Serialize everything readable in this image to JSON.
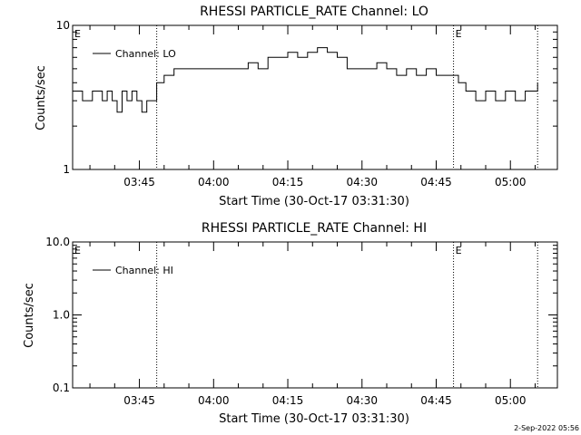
{
  "footer": {
    "timestamp": "2-Sep-2022 05:56"
  },
  "chart_data": [
    {
      "type": "line",
      "title": "RHESSI PARTICLE_RATE Channel: LO",
      "xlabel": "Start Time (30-Oct-17 03:31:30)",
      "ylabel": "Counts/sec",
      "y_scale": "log",
      "ylim": [
        1,
        10
      ],
      "y_tick_labels": [
        "1",
        "10"
      ],
      "xlim": [
        "03:31:30",
        "05:09:30"
      ],
      "x_tick_labels": [
        "03:45",
        "04:00",
        "04:15",
        "04:30",
        "04:45",
        "05:00"
      ],
      "legend": {
        "position": "top-left",
        "entries": [
          "Channel: LO"
        ]
      },
      "grid": false,
      "event_markers": [
        {
          "time": "03:31:30",
          "label": "E"
        },
        {
          "time": "03:48:30",
          "label": ""
        },
        {
          "time": "04:48:30",
          "label": "E"
        },
        {
          "time": "05:05:30",
          "label": ""
        }
      ],
      "series": [
        {
          "name": "Channel: LO",
          "x": [
            "03:31:30",
            "03:33:30",
            "03:35:30",
            "03:37:30",
            "03:38:30",
            "03:39:30",
            "03:40:30",
            "03:41:30",
            "03:42:30",
            "03:43:30",
            "03:44:30",
            "03:45:30",
            "03:46:30",
            "03:48:00",
            "03:48:30",
            "03:50:00",
            "03:52:00",
            "03:54:00",
            "03:56:00",
            "03:58:00",
            "04:00:00",
            "04:03:00",
            "04:05:00",
            "04:07:00",
            "04:09:00",
            "04:11:00",
            "04:13:00",
            "04:15:00",
            "04:17:00",
            "04:19:00",
            "04:21:00",
            "04:23:00",
            "04:25:00",
            "04:27:00",
            "04:29:00",
            "04:31:00",
            "04:33:00",
            "04:35:00",
            "04:37:00",
            "04:39:00",
            "04:41:00",
            "04:43:00",
            "04:45:00",
            "04:47:00",
            "04:48:30",
            "04:49:30",
            "04:51:00",
            "04:53:00",
            "04:55:00",
            "04:57:00",
            "04:59:00",
            "05:01:00",
            "05:03:00",
            "05:05:30"
          ],
          "y": [
            3.5,
            3,
            3.5,
            3,
            3.5,
            3,
            2.5,
            3.5,
            3,
            3.5,
            3,
            2.5,
            3,
            3,
            4,
            4.5,
            5,
            5,
            5,
            5,
            5,
            5,
            5,
            5.5,
            5,
            6,
            6,
            6.5,
            6,
            6.5,
            7,
            6.5,
            6,
            5,
            5,
            5,
            5.5,
            5,
            4.5,
            5,
            4.5,
            5,
            4.5,
            4.5,
            4.5,
            4,
            3.5,
            3,
            3.5,
            3,
            3.5,
            3,
            3.5,
            4
          ]
        }
      ]
    },
    {
      "type": "line",
      "title": "RHESSI PARTICLE_RATE Channel: HI",
      "xlabel": "Start Time (30-Oct-17 03:31:30)",
      "ylabel": "Counts/sec",
      "y_scale": "log",
      "ylim": [
        0.1,
        10
      ],
      "y_tick_labels": [
        "0.1",
        "1.0",
        "10.0"
      ],
      "xlim": [
        "03:31:30",
        "05:09:30"
      ],
      "x_tick_labels": [
        "03:45",
        "04:00",
        "04:15",
        "04:30",
        "04:45",
        "05:00"
      ],
      "legend": {
        "position": "top-left",
        "entries": [
          "Channel: HI"
        ]
      },
      "grid": false,
      "event_markers": [
        {
          "time": "03:31:30",
          "label": "E"
        },
        {
          "time": "03:48:30",
          "label": ""
        },
        {
          "time": "04:48:30",
          "label": "E"
        },
        {
          "time": "05:05:30",
          "label": ""
        }
      ],
      "series": [
        {
          "name": "Channel: HI",
          "x": [],
          "y": []
        }
      ]
    }
  ]
}
